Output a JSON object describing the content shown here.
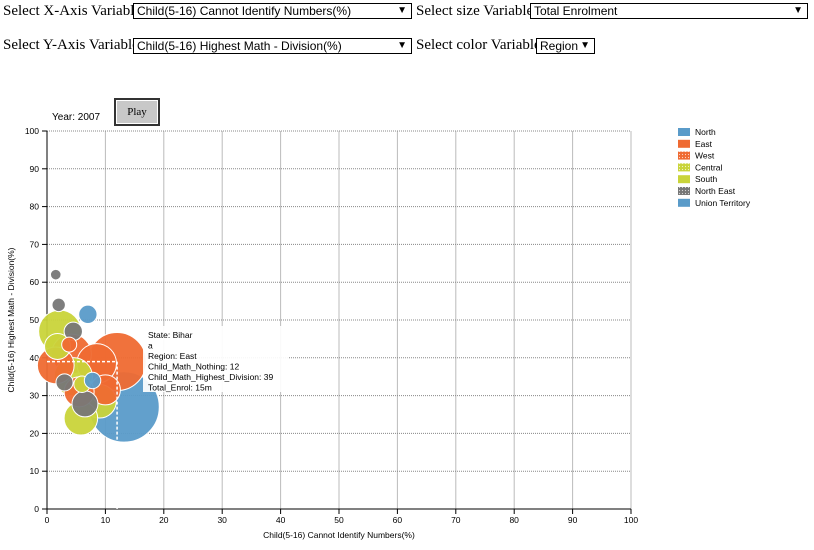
{
  "controls": {
    "x_label": "Select X-Axis Variable",
    "x_value": "Child(5-16) Cannot Identify Numbers(%)",
    "size_label": "Select size Variable",
    "size_value": "Total Enrolment",
    "y_label": "Select Y-Axis Variable",
    "y_value": "Child(5-16) Highest Math - Division(%)",
    "color_label": "Select color Variable",
    "color_value": "Region",
    "dropdown_arrow": "▼"
  },
  "player": {
    "year_label": "Year: 2007",
    "play_label": "Play"
  },
  "tooltip": {
    "lines": [
      "State: Bihar",
      "a",
      "Region: East",
      "Child_Math_Nothing: 12",
      "Child_Math_Highest_Division: 39",
      "Total_Enrol: 15m"
    ]
  },
  "colors": {
    "North": "#5a9bc9",
    "East": "#ef6a32",
    "West": "#ef6a32",
    "Central": "#c9d43a",
    "South": "#c9d43a",
    "North East": "#777777",
    "Union Territory": "#5a9bc9"
  },
  "chart_data": {
    "type": "scatter",
    "xlabel": "Child(5-16) Cannot Identify Numbers(%)",
    "ylabel": "Child(5-16) Highest Math - Division(%)",
    "xlim": [
      0,
      100
    ],
    "ylim": [
      0,
      100
    ],
    "xticks": [
      0,
      10,
      20,
      30,
      40,
      50,
      60,
      70,
      80,
      90,
      100
    ],
    "yticks": [
      0,
      10,
      20,
      30,
      40,
      50,
      60,
      70,
      80,
      90,
      100
    ],
    "grid": true,
    "legend": {
      "placement": "right",
      "entries": [
        "North",
        "East",
        "West",
        "Central",
        "South",
        "North East",
        "Union Territory"
      ]
    },
    "points": [
      {
        "x": 13.2,
        "y": 27,
        "size": 22,
        "region": "North"
      },
      {
        "x": 12,
        "y": 39,
        "size": 15,
        "region": "East"
      },
      {
        "x": 2.2,
        "y": 47,
        "size": 8,
        "region": "Central"
      },
      {
        "x": 4.2,
        "y": 41,
        "size": 7,
        "region": "East"
      },
      {
        "x": 8.5,
        "y": 38.5,
        "size": 7,
        "region": "West"
      },
      {
        "x": 1.5,
        "y": 38,
        "size": 6,
        "region": "West"
      },
      {
        "x": 4.5,
        "y": 35,
        "size": 6.5,
        "region": "South"
      },
      {
        "x": 9,
        "y": 28.5,
        "size": 5,
        "region": "South"
      },
      {
        "x": 5.8,
        "y": 24,
        "size": 5,
        "region": "South"
      },
      {
        "x": 10,
        "y": 31.5,
        "size": 4,
        "region": "East"
      },
      {
        "x": 5.5,
        "y": 31,
        "size": 4,
        "region": "West"
      },
      {
        "x": 6.5,
        "y": 27.8,
        "size": 3,
        "region": "North East"
      },
      {
        "x": 1.8,
        "y": 43,
        "size": 3,
        "region": "Central"
      },
      {
        "x": 7,
        "y": 51.5,
        "size": 1.5,
        "region": "Union Territory"
      },
      {
        "x": 4.5,
        "y": 47,
        "size": 1.5,
        "region": "North East"
      },
      {
        "x": 2,
        "y": 54,
        "size": 0.8,
        "region": "North East"
      },
      {
        "x": 1.5,
        "y": 62,
        "size": 0.5,
        "region": "North East"
      },
      {
        "x": 3,
        "y": 33.5,
        "size": 1.3,
        "region": "North East"
      },
      {
        "x": 6,
        "y": 33,
        "size": 1.2,
        "region": "Central"
      },
      {
        "x": 7.8,
        "y": 34,
        "size": 1.2,
        "region": "North"
      },
      {
        "x": 3.8,
        "y": 43.5,
        "size": 1.0,
        "region": "East"
      }
    ]
  }
}
